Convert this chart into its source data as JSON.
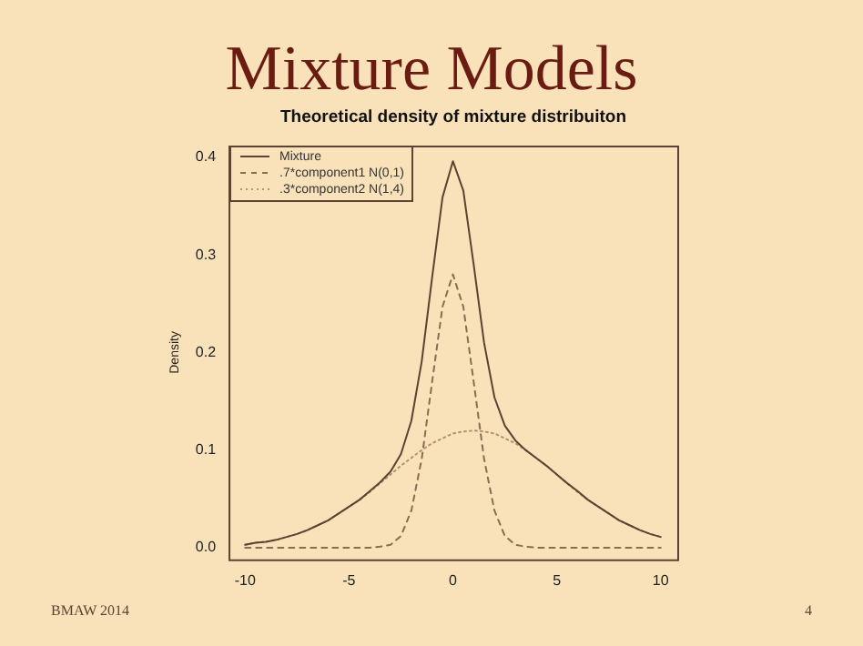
{
  "chart_data": {
    "type": "line",
    "title": "Mixture Models",
    "subtitle": "Theoretical density of mixture distribuiton",
    "ylabel": "Density",
    "annotations": [
      "BMAW 2014",
      "4"
    ],
    "x": [
      -10,
      -9.5,
      -9,
      -8.5,
      -8,
      -7.5,
      -7,
      -6.5,
      -6,
      -5.5,
      -5,
      -4.5,
      -4,
      -3.5,
      -3,
      -2.5,
      -2,
      -1.5,
      -1,
      -0.5,
      0,
      0.5,
      1,
      1.5,
      2,
      2.5,
      3,
      3.5,
      4,
      4.5,
      5,
      5.5,
      6,
      6.5,
      7,
      7.5,
      8,
      8.5,
      9,
      9.5,
      10
    ],
    "series": [
      {
        "name": "Mixture",
        "color": "#5b4332",
        "line_style": "solid",
        "values": [
          0.003,
          0.005,
          0.006,
          0.008,
          0.011,
          0.014,
          0.018,
          0.023,
          0.028,
          0.035,
          0.042,
          0.049,
          0.058,
          0.067,
          0.078,
          0.096,
          0.13,
          0.191,
          0.277,
          0.359,
          0.396,
          0.366,
          0.29,
          0.21,
          0.154,
          0.125,
          0.11,
          0.1,
          0.092,
          0.084,
          0.075,
          0.066,
          0.058,
          0.049,
          0.042,
          0.035,
          0.028,
          0.023,
          0.018,
          0.014,
          0.011
        ]
      },
      {
        "name": ".7*component1 N(0,1)",
        "color": "#8a6c52",
        "line_style": "dashed",
        "values": [
          0,
          0,
          0,
          0,
          0,
          0,
          0,
          0,
          0,
          0,
          0,
          0,
          0,
          0.001,
          0.003,
          0.012,
          0.038,
          0.091,
          0.17,
          0.247,
          0.28,
          0.247,
          0.17,
          0.091,
          0.038,
          0.012,
          0.003,
          0.001,
          0,
          0,
          0,
          0,
          0,
          0,
          0,
          0,
          0,
          0,
          0,
          0,
          0
        ]
      },
      {
        "name": ".3*component2 N(1,4)",
        "color": "#b09274",
        "line_style": "dotted",
        "values": [
          0.003,
          0.005,
          0.006,
          0.008,
          0.011,
          0.014,
          0.018,
          0.023,
          0.028,
          0.035,
          0.042,
          0.049,
          0.057,
          0.066,
          0.075,
          0.084,
          0.092,
          0.1,
          0.107,
          0.112,
          0.117,
          0.119,
          0.12,
          0.119,
          0.117,
          0.112,
          0.107,
          0.1,
          0.092,
          0.084,
          0.075,
          0.066,
          0.057,
          0.049,
          0.042,
          0.035,
          0.028,
          0.023,
          0.018,
          0.014,
          0.011
        ]
      }
    ],
    "xlim": [
      -10.8,
      10.8
    ],
    "xticks": [
      -10,
      -5,
      0,
      5,
      10
    ],
    "ylim": [
      -0.012,
      0.412
    ],
    "yticks": [
      {
        "value": 0,
        "label": "0.0"
      },
      {
        "value": 0.1,
        "label": "0.1"
      },
      {
        "value": 0.2,
        "label": "0.2"
      },
      {
        "value": 0.3,
        "label": "0.3"
      },
      {
        "value": 0.4,
        "label": "0.4"
      }
    ],
    "grid": false,
    "legend": "top left",
    "marker": "none"
  }
}
